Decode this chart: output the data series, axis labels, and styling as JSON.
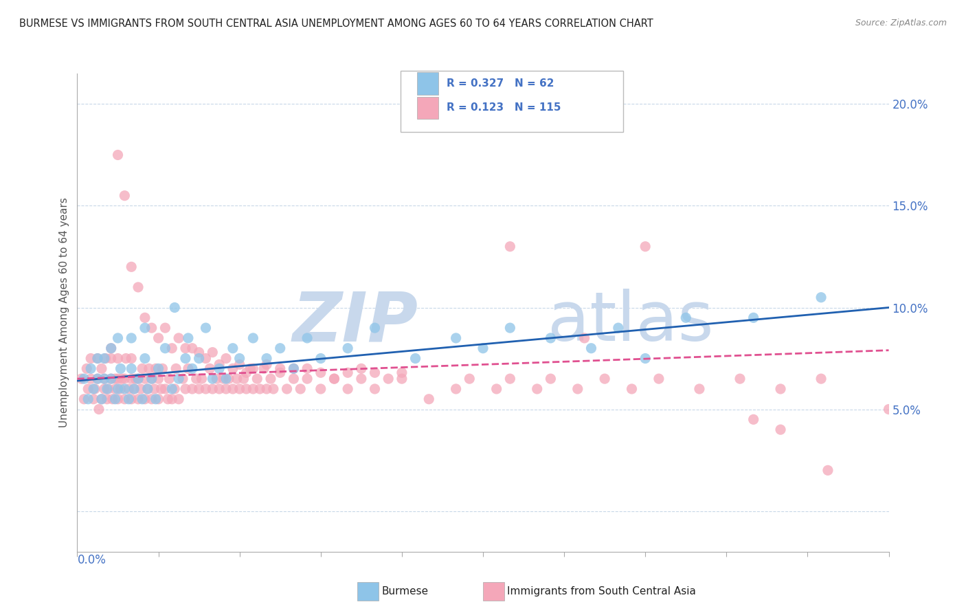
{
  "title": "BURMESE VS IMMIGRANTS FROM SOUTH CENTRAL ASIA UNEMPLOYMENT AMONG AGES 60 TO 64 YEARS CORRELATION CHART",
  "source": "Source: ZipAtlas.com",
  "ylabel": "Unemployment Among Ages 60 to 64 years",
  "burmese_R": 0.327,
  "burmese_N": 62,
  "immigrant_R": 0.123,
  "immigrant_N": 115,
  "burmese_color": "#8ec4e8",
  "immigrant_color": "#f4a7b9",
  "burmese_line_color": "#2060b0",
  "immigrant_line_color": "#e05090",
  "watermark_zip": "ZIP",
  "watermark_atlas": "atlas",
  "watermark_color": "#c8d8ec",
  "xlim": [
    0.0,
    0.6
  ],
  "ylim": [
    -0.02,
    0.215
  ],
  "yticks": [
    0.0,
    0.05,
    0.1,
    0.15,
    0.2
  ],
  "ytick_labels": [
    "",
    "5.0%",
    "10.0%",
    "15.0%",
    "20.0%"
  ],
  "grid_color": "#c8d8e8",
  "background_color": "#ffffff",
  "tick_color": "#4472c4",
  "burmese_x": [
    0.005,
    0.008,
    0.01,
    0.012,
    0.015,
    0.015,
    0.018,
    0.02,
    0.02,
    0.022,
    0.025,
    0.025,
    0.028,
    0.03,
    0.03,
    0.032,
    0.035,
    0.038,
    0.04,
    0.04,
    0.042,
    0.045,
    0.048,
    0.05,
    0.05,
    0.052,
    0.055,
    0.058,
    0.06,
    0.065,
    0.07,
    0.072,
    0.075,
    0.08,
    0.082,
    0.085,
    0.09,
    0.095,
    0.1,
    0.105,
    0.11,
    0.115,
    0.12,
    0.13,
    0.14,
    0.15,
    0.16,
    0.17,
    0.18,
    0.2,
    0.22,
    0.25,
    0.28,
    0.3,
    0.32,
    0.35,
    0.38,
    0.4,
    0.42,
    0.45,
    0.5,
    0.55
  ],
  "burmese_y": [
    0.065,
    0.055,
    0.07,
    0.06,
    0.065,
    0.075,
    0.055,
    0.065,
    0.075,
    0.06,
    0.065,
    0.08,
    0.055,
    0.06,
    0.085,
    0.07,
    0.06,
    0.055,
    0.07,
    0.085,
    0.06,
    0.065,
    0.055,
    0.075,
    0.09,
    0.06,
    0.065,
    0.055,
    0.07,
    0.08,
    0.06,
    0.1,
    0.065,
    0.075,
    0.085,
    0.07,
    0.075,
    0.09,
    0.065,
    0.07,
    0.065,
    0.08,
    0.075,
    0.085,
    0.075,
    0.08,
    0.07,
    0.085,
    0.075,
    0.08,
    0.09,
    0.075,
    0.085,
    0.08,
    0.09,
    0.085,
    0.08,
    0.09,
    0.075,
    0.095,
    0.095,
    0.105
  ],
  "immigrant_x": [
    0.003,
    0.005,
    0.007,
    0.008,
    0.01,
    0.01,
    0.012,
    0.013,
    0.015,
    0.015,
    0.016,
    0.018,
    0.018,
    0.02,
    0.02,
    0.021,
    0.022,
    0.023,
    0.025,
    0.025,
    0.025,
    0.026,
    0.028,
    0.028,
    0.03,
    0.03,
    0.03,
    0.032,
    0.033,
    0.035,
    0.035,
    0.036,
    0.038,
    0.04,
    0.04,
    0.04,
    0.042,
    0.043,
    0.045,
    0.045,
    0.047,
    0.048,
    0.05,
    0.05,
    0.052,
    0.053,
    0.055,
    0.055,
    0.057,
    0.058,
    0.06,
    0.06,
    0.062,
    0.063,
    0.065,
    0.067,
    0.068,
    0.07,
    0.072,
    0.073,
    0.075,
    0.078,
    0.08,
    0.082,
    0.085,
    0.088,
    0.09,
    0.092,
    0.095,
    0.098,
    0.1,
    0.103,
    0.105,
    0.108,
    0.11,
    0.112,
    0.115,
    0.118,
    0.12,
    0.123,
    0.125,
    0.128,
    0.13,
    0.133,
    0.135,
    0.138,
    0.14,
    0.143,
    0.145,
    0.15,
    0.155,
    0.16,
    0.165,
    0.17,
    0.18,
    0.19,
    0.2,
    0.21,
    0.22,
    0.24,
    0.26,
    0.28,
    0.29,
    0.31,
    0.32,
    0.34,
    0.35,
    0.37,
    0.39,
    0.41,
    0.43,
    0.46,
    0.49,
    0.52,
    0.55
  ],
  "immigrant_y": [
    0.065,
    0.055,
    0.07,
    0.06,
    0.065,
    0.075,
    0.055,
    0.06,
    0.065,
    0.075,
    0.05,
    0.055,
    0.07,
    0.06,
    0.065,
    0.075,
    0.055,
    0.06,
    0.065,
    0.075,
    0.08,
    0.055,
    0.06,
    0.065,
    0.055,
    0.065,
    0.075,
    0.06,
    0.065,
    0.055,
    0.065,
    0.075,
    0.06,
    0.055,
    0.065,
    0.075,
    0.06,
    0.065,
    0.055,
    0.065,
    0.06,
    0.07,
    0.055,
    0.065,
    0.06,
    0.07,
    0.055,
    0.065,
    0.06,
    0.07,
    0.055,
    0.065,
    0.06,
    0.07,
    0.06,
    0.055,
    0.065,
    0.055,
    0.06,
    0.07,
    0.055,
    0.065,
    0.06,
    0.07,
    0.06,
    0.065,
    0.06,
    0.065,
    0.06,
    0.07,
    0.06,
    0.065,
    0.06,
    0.065,
    0.06,
    0.065,
    0.06,
    0.065,
    0.06,
    0.065,
    0.06,
    0.07,
    0.06,
    0.065,
    0.06,
    0.07,
    0.06,
    0.065,
    0.06,
    0.07,
    0.06,
    0.065,
    0.06,
    0.07,
    0.06,
    0.065,
    0.06,
    0.07,
    0.06,
    0.065,
    0.055,
    0.06,
    0.065,
    0.06,
    0.065,
    0.06,
    0.065,
    0.06,
    0.065,
    0.06,
    0.065,
    0.06,
    0.065,
    0.06,
    0.065
  ],
  "immigrant_outliers_x": [
    0.32,
    0.375,
    0.42,
    0.5,
    0.52,
    0.555,
    0.6
  ],
  "immigrant_outliers_y": [
    0.13,
    0.085,
    0.13,
    0.045,
    0.04,
    0.02,
    0.05
  ],
  "extra_immigrant_x": [
    0.03,
    0.035,
    0.04,
    0.045,
    0.05,
    0.055,
    0.06,
    0.065,
    0.07,
    0.075,
    0.08,
    0.085,
    0.09,
    0.095,
    0.1,
    0.105,
    0.11,
    0.115,
    0.12,
    0.125,
    0.13,
    0.14,
    0.15,
    0.16,
    0.17,
    0.18,
    0.19,
    0.2,
    0.21,
    0.22,
    0.23,
    0.24
  ],
  "extra_immigrant_y": [
    0.175,
    0.155,
    0.12,
    0.11,
    0.095,
    0.09,
    0.085,
    0.09,
    0.08,
    0.085,
    0.08,
    0.08,
    0.078,
    0.075,
    0.078,
    0.072,
    0.075,
    0.07,
    0.072,
    0.068,
    0.07,
    0.072,
    0.068,
    0.07,
    0.065,
    0.068,
    0.065,
    0.068,
    0.065,
    0.068,
    0.065,
    0.068
  ]
}
